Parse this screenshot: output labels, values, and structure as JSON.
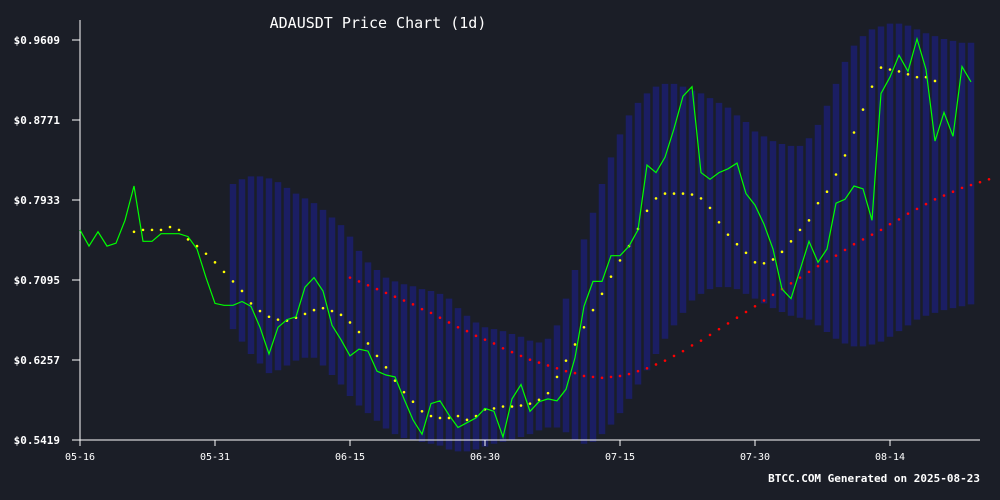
{
  "chart_data": {
    "type": "line",
    "title": "ADAUSDT Price Chart (1d)",
    "xlabel": "",
    "ylabel": "",
    "ylim": [
      0.5419,
      0.9609
    ],
    "y_ticks": [
      "$0.9609",
      "$0.8771",
      "$0.7933",
      "$0.7095",
      "$0.6257",
      "$0.5419"
    ],
    "x_ticks": [
      {
        "label": "05-16",
        "day": 0
      },
      {
        "label": "05-31",
        "day": 15
      },
      {
        "label": "06-15",
        "day": 30
      },
      {
        "label": "06-30",
        "day": 45
      },
      {
        "label": "07-15",
        "day": 60
      },
      {
        "label": "07-30",
        "day": 75
      },
      {
        "label": "08-14",
        "day": 90
      }
    ],
    "start_date": "2025-05-16",
    "grid": false,
    "legend": "none",
    "series": [
      {
        "key": "price",
        "color": "#00ff00",
        "style": "line",
        "start_day": 0,
        "values": [
          0.762,
          0.745,
          0.76,
          0.745,
          0.748,
          0.772,
          0.808,
          0.75,
          0.75,
          0.758,
          0.758,
          0.758,
          0.755,
          0.742,
          0.712,
          0.685,
          0.683,
          0.683,
          0.687,
          0.682,
          0.66,
          0.632,
          0.66,
          0.668,
          0.671,
          0.702,
          0.712,
          0.698,
          0.662,
          0.647,
          0.63,
          0.637,
          0.635,
          0.614,
          0.61,
          0.608,
          0.585,
          0.563,
          0.548,
          0.58,
          0.583,
          0.568,
          0.555,
          0.56,
          0.565,
          0.575,
          0.572,
          0.545,
          0.585,
          0.6,
          0.572,
          0.582,
          0.585,
          0.583,
          0.595,
          0.628,
          0.682,
          0.708,
          0.708,
          0.735,
          0.735,
          0.745,
          0.762,
          0.83,
          0.822,
          0.838,
          0.868,
          0.902,
          0.912,
          0.822,
          0.815,
          0.822,
          0.826,
          0.832,
          0.8,
          0.788,
          0.768,
          0.742,
          0.7,
          0.69,
          0.72,
          0.75,
          0.728,
          0.742,
          0.79,
          0.794,
          0.808,
          0.805,
          0.772,
          0.905,
          0.922,
          0.945,
          0.928,
          0.962,
          0.93,
          0.855,
          0.885,
          0.86,
          0.933,
          0.917
        ]
      },
      {
        "key": "ma_short",
        "color": "#ffff00",
        "style": "dots",
        "start_day": 6,
        "values": [
          0.76,
          0.762,
          0.762,
          0.762,
          0.765,
          0.762,
          0.752,
          0.745,
          0.737,
          0.728,
          0.718,
          0.708,
          0.698,
          0.685,
          0.677,
          0.671,
          0.668,
          0.667,
          0.67,
          0.674,
          0.678,
          0.68,
          0.677,
          0.673,
          0.665,
          0.655,
          0.643,
          0.63,
          0.618,
          0.604,
          0.592,
          0.582,
          0.572,
          0.567,
          0.565,
          0.565,
          0.567,
          0.563,
          0.567,
          0.574,
          0.575,
          0.577,
          0.577,
          0.578,
          0.58,
          0.584,
          0.591,
          0.608,
          0.625,
          0.642,
          0.66,
          0.678,
          0.695,
          0.713,
          0.73,
          0.745,
          0.763,
          0.782,
          0.795,
          0.8,
          0.8,
          0.8,
          0.799,
          0.795,
          0.785,
          0.77,
          0.757,
          0.747,
          0.738,
          0.728,
          0.727,
          0.731,
          0.739,
          0.75,
          0.762,
          0.772,
          0.79,
          0.802,
          0.82,
          0.84,
          0.864,
          0.888,
          0.912,
          0.932,
          0.93,
          0.928,
          0.925,
          0.922,
          0.922,
          0.918
        ]
      },
      {
        "key": "ma_long",
        "color": "#ff0000",
        "style": "dots",
        "start_day": 30,
        "values": [
          0.712,
          0.708,
          0.704,
          0.7,
          0.696,
          0.692,
          0.688,
          0.684,
          0.679,
          0.675,
          0.67,
          0.665,
          0.66,
          0.656,
          0.651,
          0.647,
          0.643,
          0.638,
          0.634,
          0.63,
          0.626,
          0.623,
          0.62,
          0.617,
          0.614,
          0.612,
          0.609,
          0.608,
          0.607,
          0.608,
          0.609,
          0.611,
          0.614,
          0.617,
          0.621,
          0.625,
          0.63,
          0.635,
          0.641,
          0.646,
          0.652,
          0.658,
          0.664,
          0.67,
          0.676,
          0.682,
          0.688,
          0.694,
          0.7,
          0.706,
          0.712,
          0.718,
          0.724,
          0.729,
          0.735,
          0.741,
          0.747,
          0.752,
          0.757,
          0.762,
          0.768,
          0.773,
          0.779,
          0.784,
          0.789,
          0.794,
          0.798,
          0.802,
          0.806,
          0.809,
          0.812,
          0.815
        ]
      }
    ],
    "bands": {
      "color": "#1b1f6e",
      "start_day": 17,
      "upper": [
        0.81,
        0.815,
        0.818,
        0.818,
        0.816,
        0.812,
        0.806,
        0.8,
        0.795,
        0.79,
        0.783,
        0.775,
        0.767,
        0.755,
        0.74,
        0.728,
        0.72,
        0.712,
        0.708,
        0.705,
        0.703,
        0.7,
        0.698,
        0.695,
        0.69,
        0.68,
        0.672,
        0.665,
        0.66,
        0.658,
        0.656,
        0.653,
        0.65,
        0.646,
        0.644,
        0.648,
        0.662,
        0.69,
        0.72,
        0.752,
        0.78,
        0.81,
        0.838,
        0.862,
        0.882,
        0.895,
        0.905,
        0.912,
        0.915,
        0.915,
        0.912,
        0.908,
        0.905,
        0.9,
        0.895,
        0.89,
        0.882,
        0.875,
        0.865,
        0.86,
        0.855,
        0.852,
        0.85,
        0.85,
        0.858,
        0.872,
        0.892,
        0.915,
        0.938,
        0.955,
        0.965,
        0.972,
        0.975,
        0.978,
        0.978,
        0.976,
        0.972,
        0.968,
        0.965,
        0.962,
        0.96,
        0.958,
        0.958
      ],
      "lower": [
        0.658,
        0.645,
        0.632,
        0.622,
        0.612,
        0.615,
        0.62,
        0.625,
        0.628,
        0.628,
        0.62,
        0.61,
        0.6,
        0.588,
        0.578,
        0.57,
        0.562,
        0.554,
        0.548,
        0.544,
        0.542,
        0.54,
        0.538,
        0.536,
        0.532,
        0.53,
        0.53,
        0.532,
        0.535,
        0.538,
        0.54,
        0.542,
        0.545,
        0.548,
        0.552,
        0.555,
        0.555,
        0.55,
        0.542,
        0.538,
        0.54,
        0.548,
        0.558,
        0.57,
        0.585,
        0.6,
        0.615,
        0.632,
        0.648,
        0.662,
        0.675,
        0.688,
        0.695,
        0.7,
        0.702,
        0.702,
        0.7,
        0.695,
        0.69,
        0.685,
        0.68,
        0.676,
        0.672,
        0.67,
        0.668,
        0.662,
        0.655,
        0.648,
        0.643,
        0.64,
        0.64,
        0.642,
        0.645,
        0.65,
        0.656,
        0.662,
        0.668,
        0.672,
        0.675,
        0.678,
        0.68,
        0.682,
        0.684
      ]
    }
  },
  "footer": "BTCC.COM Generated on 2025-08-23"
}
